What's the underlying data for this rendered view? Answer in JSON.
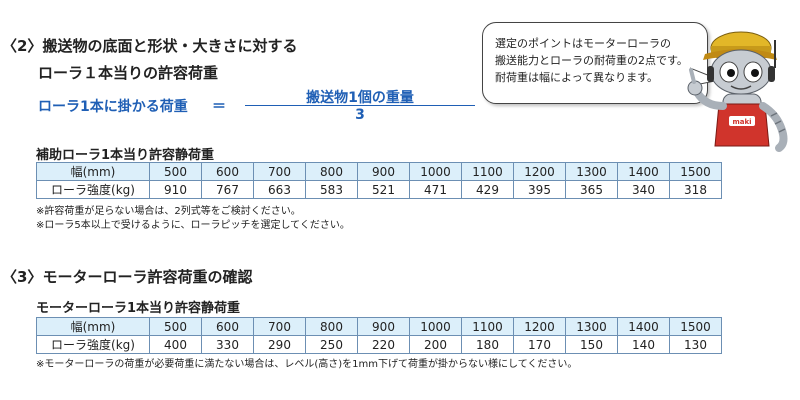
{
  "section2": {
    "number": "〈2〉",
    "title_line1": "搬送物の底面と形状・大きさに対する",
    "title_line2": "ローラ１本当りの許容荷重"
  },
  "formula": {
    "lhs": "ローラ1本に掛かる荷重",
    "equals": "＝",
    "numerator": "搬送物1個の重量",
    "denominator": "3"
  },
  "bubble": {
    "line1": "選定のポイントはモーターローラの",
    "line2": "搬送能力とローラの耐荷重の2点です。",
    "line3": "耐荷重は幅によって異なります。"
  },
  "mascot": {
    "apron_label": "maki"
  },
  "table1": {
    "title": "補助ローラ1本当り許容静荷重",
    "header_label": "幅(mm)",
    "widths": [
      "500",
      "600",
      "700",
      "800",
      "900",
      "1000",
      "1100",
      "1200",
      "1300",
      "1400",
      "1500"
    ],
    "row_label": "ローラ強度(kg)",
    "values": [
      "910",
      "767",
      "663",
      "583",
      "521",
      "471",
      "429",
      "395",
      "365",
      "340",
      "318"
    ]
  },
  "notes1": [
    "※許容荷重が足らない場合は、2列式等をご検討ください。",
    "※ローラ5本以上で受けるように、ローラピッチを選定してください。"
  ],
  "section3": {
    "number": "〈3〉",
    "title": "モーターローラ許容荷重の確認"
  },
  "table2": {
    "title": "モーターローラ1本当り許容静荷重",
    "header_label": "幅(mm)",
    "widths": [
      "500",
      "600",
      "700",
      "800",
      "900",
      "1000",
      "1100",
      "1200",
      "1300",
      "1400",
      "1500"
    ],
    "row_label": "ローラ強度(kg)",
    "values": [
      "400",
      "330",
      "290",
      "250",
      "220",
      "200",
      "180",
      "170",
      "150",
      "140",
      "130"
    ]
  },
  "notes2": [
    "※モーターローラの荷重が必要荷重に満たない場合は、レベル(高さ)を1mm下げて荷重が掛からない様にしてください。"
  ],
  "colors": {
    "accent_blue": "#1f5fb5",
    "table_header_bg": "#dceffa",
    "table_border": "#6c8fb3",
    "mascot_red": "#d0342c"
  }
}
